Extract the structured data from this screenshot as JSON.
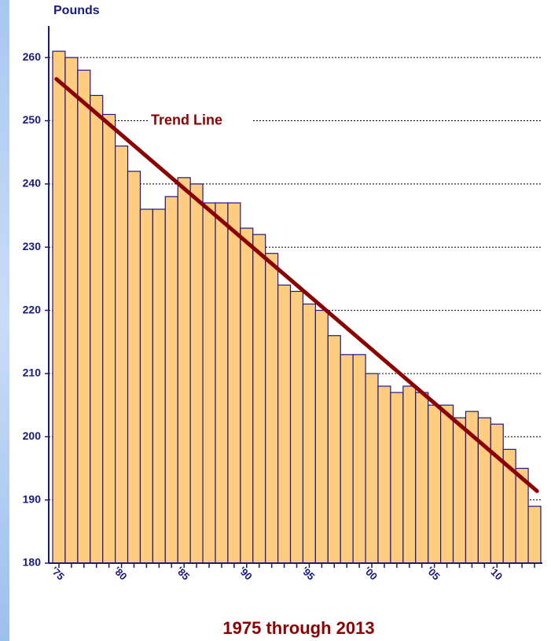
{
  "chart_data": {
    "type": "bar",
    "y_label": "Pounds",
    "x_label": "1975 through 2013",
    "categories": [
      "'75",
      null,
      null,
      null,
      null,
      "'80",
      null,
      null,
      null,
      null,
      "'85",
      null,
      null,
      null,
      null,
      "'90",
      null,
      null,
      null,
      null,
      "'95",
      null,
      null,
      null,
      null,
      "'00",
      null,
      null,
      null,
      null,
      "'05",
      null,
      null,
      null,
      null,
      "'10",
      null,
      null,
      null
    ],
    "values": [
      261,
      260,
      258,
      254,
      251,
      246,
      242,
      236,
      236,
      238,
      241,
      240,
      237,
      237,
      237,
      233,
      232,
      229,
      224,
      223,
      221,
      220,
      216,
      213,
      213,
      210,
      208,
      207,
      208,
      207,
      205,
      205,
      203,
      204,
      203,
      202,
      198,
      195,
      189
    ],
    "color": "#ffcc80",
    "edge_color": "#1a1a80",
    "ylim": [
      180,
      265
    ],
    "yticks": [
      180,
      190,
      200,
      210,
      220,
      230,
      240,
      250,
      260
    ],
    "grid": true,
    "trend": {
      "label": "Trend Line",
      "start": 256.6,
      "end": 191.4,
      "color": "#8b0000"
    }
  }
}
